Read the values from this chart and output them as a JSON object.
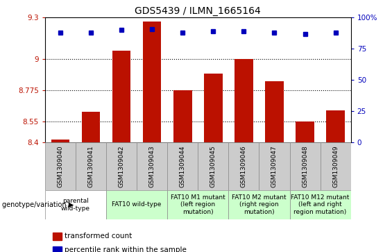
{
  "title": "GDS5439 / ILMN_1665164",
  "samples": [
    "GSM1309040",
    "GSM1309041",
    "GSM1309042",
    "GSM1309043",
    "GSM1309044",
    "GSM1309045",
    "GSM1309046",
    "GSM1309047",
    "GSM1309048",
    "GSM1309049"
  ],
  "transformed_counts": [
    8.42,
    8.62,
    9.06,
    9.27,
    8.775,
    8.895,
    9.0,
    8.84,
    8.55,
    8.63
  ],
  "percentile_ranks": [
    88,
    88,
    90,
    91,
    88,
    89,
    89,
    88,
    87,
    88
  ],
  "ylim_left": [
    8.4,
    9.3
  ],
  "ylim_right": [
    0,
    100
  ],
  "yticks_left": [
    8.4,
    8.55,
    8.775,
    9.0,
    9.3
  ],
  "ytick_labels_left": [
    "8.4",
    "8.55",
    "8.775",
    "9",
    "9.3"
  ],
  "yticks_right": [
    0,
    25,
    50,
    75,
    100
  ],
  "ytick_labels_right": [
    "0",
    "25",
    "50",
    "75",
    "100%"
  ],
  "hlines": [
    8.55,
    8.775,
    9.0
  ],
  "bar_color": "#bb1100",
  "dot_color": "#0000bb",
  "bar_bottom": 8.4,
  "groups": [
    {
      "label": "parental\nwild-type",
      "span": [
        0,
        2
      ],
      "color": "#ffffff"
    },
    {
      "label": "FAT10 wild-type",
      "span": [
        2,
        4
      ],
      "color": "#ccffcc"
    },
    {
      "label": "FAT10 M1 mutant\n(left region\nmutation)",
      "span": [
        4,
        6
      ],
      "color": "#ccffcc"
    },
    {
      "label": "FAT10 M2 mutant\n(right region\nmutation)",
      "span": [
        6,
        8
      ],
      "color": "#ccffcc"
    },
    {
      "label": "FAT10 M12 mutant\n(left and right\nregion mutation)",
      "span": [
        8,
        10
      ],
      "color": "#ccffcc"
    }
  ],
  "genotype_label": "genotype/variation",
  "legend_items": [
    {
      "color": "#bb1100",
      "label": "transformed count"
    },
    {
      "color": "#0000bb",
      "label": "percentile rank within the sample"
    }
  ],
  "title_fontsize": 10,
  "tick_fontsize": 7.5,
  "label_fontsize": 8,
  "group_label_fontsize": 6.5,
  "sample_label_fontsize": 6.5
}
